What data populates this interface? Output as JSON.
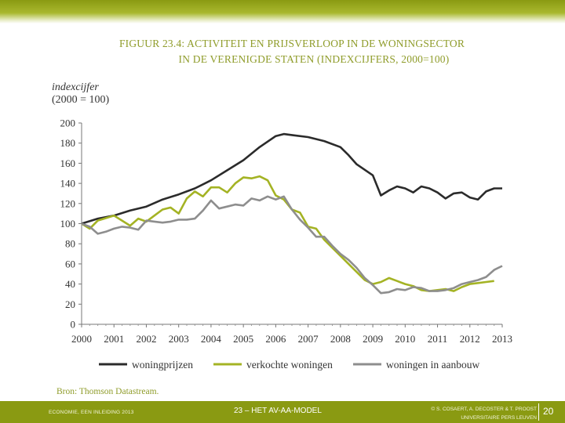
{
  "title_line1": "FIGUUR 23.4: ACTIVITEIT EN PRIJSVERLOOP IN DE WONINGSECTOR",
  "title_line2": "IN DE VERENIGDE STATEN (INDEXCIJFERS, 2000=100)",
  "source": "Bron: Thomson Datastream.",
  "footer": {
    "left": "ECONOMIE, EEN INLEIDING 2013",
    "center": "23 – HET AV-AA-MODEL",
    "right_line1": "© S. COSAERT, A. DECOSTER & T. PROOST",
    "right_line2": "UNIVERSITAIRE PERS LEUVEN",
    "page": "20"
  },
  "colors": {
    "accent": "#8a9a12",
    "title": "#8f9c2a"
  },
  "chart_data": {
    "type": "line",
    "title": "Activiteit en prijsverloop in de woningsector in de Verenigde Staten (indexcijfers, 2000=100)",
    "ylabel_line1": "indexcijfer",
    "ylabel_line2": "(2000 = 100)",
    "xlabel": "",
    "ylim": [
      0,
      200
    ],
    "xlim": [
      2000,
      2013
    ],
    "yticks": [
      "0",
      "20",
      "40",
      "60",
      "80",
      "100",
      "120",
      "140",
      "160",
      "180",
      "200"
    ],
    "xticks": [
      "2000",
      "2001",
      "2002",
      "2003",
      "2004",
      "2005",
      "2006",
      "2007",
      "2008",
      "2009",
      "2010",
      "2011",
      "2012",
      "2013"
    ],
    "legend_position": "bottom",
    "series": [
      {
        "name": "woningprijzen",
        "color": "#2b2b2b",
        "points": [
          [
            2000,
            100
          ],
          [
            2000.5,
            105
          ],
          [
            2001,
            108
          ],
          [
            2001.5,
            113
          ],
          [
            2002,
            117
          ],
          [
            2002.5,
            124
          ],
          [
            2003,
            129
          ],
          [
            2003.5,
            135
          ],
          [
            2004,
            143
          ],
          [
            2004.5,
            153
          ],
          [
            2005,
            163
          ],
          [
            2005.5,
            176
          ],
          [
            2006,
            187
          ],
          [
            2006.25,
            189
          ],
          [
            2006.5,
            188
          ],
          [
            2007,
            186
          ],
          [
            2007.5,
            182
          ],
          [
            2008,
            176
          ],
          [
            2008.25,
            168
          ],
          [
            2008.5,
            159
          ],
          [
            2009,
            148
          ],
          [
            2009.25,
            128
          ],
          [
            2009.5,
            133
          ],
          [
            2009.75,
            137
          ],
          [
            2010,
            135
          ],
          [
            2010.25,
            131
          ],
          [
            2010.5,
            137
          ],
          [
            2010.75,
            135
          ],
          [
            2011,
            131
          ],
          [
            2011.25,
            125
          ],
          [
            2011.5,
            130
          ],
          [
            2011.75,
            131
          ],
          [
            2012,
            126
          ],
          [
            2012.25,
            124
          ],
          [
            2012.5,
            132
          ],
          [
            2012.75,
            135
          ],
          [
            2013,
            135
          ]
        ]
      },
      {
        "name": "verkochte woningen",
        "color": "#a4b324",
        "points": [
          [
            2000,
            100
          ],
          [
            2000.25,
            95
          ],
          [
            2000.5,
            103
          ],
          [
            2001,
            108
          ],
          [
            2001.25,
            103
          ],
          [
            2001.5,
            98
          ],
          [
            2001.75,
            105
          ],
          [
            2002,
            102
          ],
          [
            2002.25,
            108
          ],
          [
            2002.5,
            114
          ],
          [
            2002.75,
            116
          ],
          [
            2003,
            110
          ],
          [
            2003.25,
            125
          ],
          [
            2003.5,
            132
          ],
          [
            2003.75,
            127
          ],
          [
            2004,
            136
          ],
          [
            2004.25,
            136
          ],
          [
            2004.5,
            131
          ],
          [
            2004.75,
            140
          ],
          [
            2005,
            146
          ],
          [
            2005.25,
            145
          ],
          [
            2005.5,
            147
          ],
          [
            2005.75,
            143
          ],
          [
            2006,
            128
          ],
          [
            2006.25,
            124
          ],
          [
            2006.5,
            114
          ],
          [
            2006.75,
            111
          ],
          [
            2007,
            97
          ],
          [
            2007.25,
            95
          ],
          [
            2007.5,
            84
          ],
          [
            2007.75,
            76
          ],
          [
            2008,
            68
          ],
          [
            2008.25,
            60
          ],
          [
            2008.5,
            52
          ],
          [
            2008.75,
            44
          ],
          [
            2009,
            40
          ],
          [
            2009.25,
            42
          ],
          [
            2009.5,
            46
          ],
          [
            2009.75,
            43
          ],
          [
            2010,
            40
          ],
          [
            2010.25,
            38
          ],
          [
            2010.5,
            34
          ],
          [
            2010.75,
            33
          ],
          [
            2011,
            34
          ],
          [
            2011.25,
            35
          ],
          [
            2011.5,
            33
          ],
          [
            2011.75,
            37
          ],
          [
            2012,
            40
          ],
          [
            2012.25,
            41
          ],
          [
            2012.5,
            42
          ],
          [
            2012.75,
            43
          ]
        ]
      },
      {
        "name": "woningen in aanbouw",
        "color": "#8e8e8e",
        "points": [
          [
            2000,
            100
          ],
          [
            2000.25,
            97
          ],
          [
            2000.5,
            90
          ],
          [
            2000.75,
            92
          ],
          [
            2001,
            95
          ],
          [
            2001.25,
            97
          ],
          [
            2001.5,
            96
          ],
          [
            2001.75,
            94
          ],
          [
            2002,
            103
          ],
          [
            2002.25,
            102
          ],
          [
            2002.5,
            101
          ],
          [
            2002.75,
            102
          ],
          [
            2003,
            104
          ],
          [
            2003.25,
            104
          ],
          [
            2003.5,
            105
          ],
          [
            2003.75,
            113
          ],
          [
            2004,
            123
          ],
          [
            2004.25,
            115
          ],
          [
            2004.5,
            117
          ],
          [
            2004.75,
            119
          ],
          [
            2005,
            118
          ],
          [
            2005.25,
            125
          ],
          [
            2005.5,
            123
          ],
          [
            2005.75,
            127
          ],
          [
            2006,
            124
          ],
          [
            2006.25,
            127
          ],
          [
            2006.5,
            114
          ],
          [
            2006.75,
            104
          ],
          [
            2007,
            96
          ],
          [
            2007.25,
            87
          ],
          [
            2007.5,
            87
          ],
          [
            2007.75,
            78
          ],
          [
            2008,
            70
          ],
          [
            2008.25,
            64
          ],
          [
            2008.5,
            56
          ],
          [
            2008.75,
            46
          ],
          [
            2009,
            39
          ],
          [
            2009.25,
            31
          ],
          [
            2009.5,
            32
          ],
          [
            2009.75,
            35
          ],
          [
            2010,
            34
          ],
          [
            2010.25,
            37
          ],
          [
            2010.5,
            36
          ],
          [
            2010.75,
            33
          ],
          [
            2011,
            33
          ],
          [
            2011.25,
            34
          ],
          [
            2011.5,
            36
          ],
          [
            2011.75,
            40
          ],
          [
            2012,
            42
          ],
          [
            2012.25,
            44
          ],
          [
            2012.5,
            47
          ],
          [
            2012.75,
            54
          ],
          [
            2013,
            58
          ]
        ]
      }
    ]
  }
}
